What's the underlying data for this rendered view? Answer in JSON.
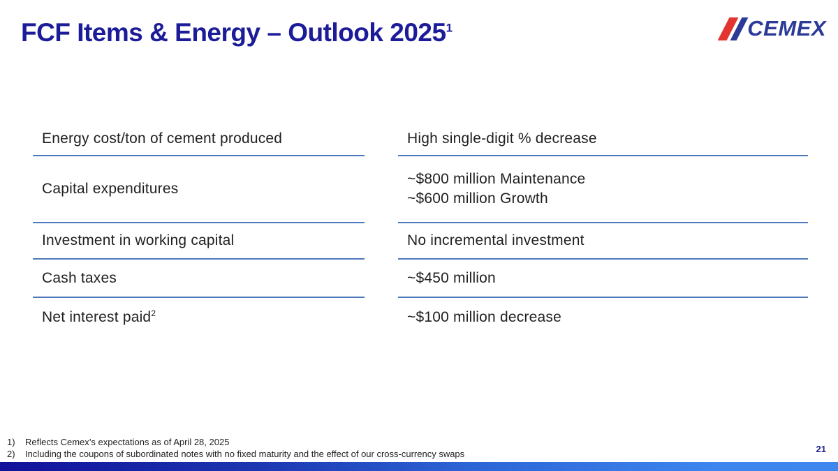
{
  "title": {
    "text": "FCF Items & Energy – Outlook 2025",
    "superscript": "1"
  },
  "logo": {
    "wordmark": "CEMEX",
    "red": "#e23531",
    "blue": "#2b3a96"
  },
  "table": {
    "rows": [
      {
        "label": "Energy cost/ton of cement produced",
        "label_sup": "",
        "value_lines": [
          "High single-digit % decrease"
        ],
        "bordered": true
      },
      {
        "label": "Capital expenditures",
        "label_sup": "",
        "value_lines": [
          "~$800 million Maintenance",
          "~$600 million Growth"
        ],
        "bordered": true
      },
      {
        "label": "Investment in working capital",
        "label_sup": "",
        "value_lines": [
          "No incremental investment"
        ],
        "bordered": true
      },
      {
        "label": "Cash taxes",
        "label_sup": "",
        "value_lines": [
          "~$450 million"
        ],
        "bordered": true
      },
      {
        "label": "Net interest paid",
        "label_sup": "2",
        "value_lines": [
          "~$100 million decrease"
        ],
        "bordered": false
      }
    ]
  },
  "footnotes": [
    {
      "num": "1)",
      "text": "Reflects Cemex’s expectations as of April 28, 2025"
    },
    {
      "num": "2)",
      "text": "Including the coupons of subordinated notes with no fixed maturity and the effect of our cross-currency swaps"
    }
  ],
  "page_number": "21",
  "colors": {
    "title_navy": "#1c1c99",
    "row_line_blue": "#4f79bc",
    "body_text": "#1f1f1f",
    "bar_gradient_start": "#11119a",
    "bar_gradient_end": "#3f86ef"
  }
}
